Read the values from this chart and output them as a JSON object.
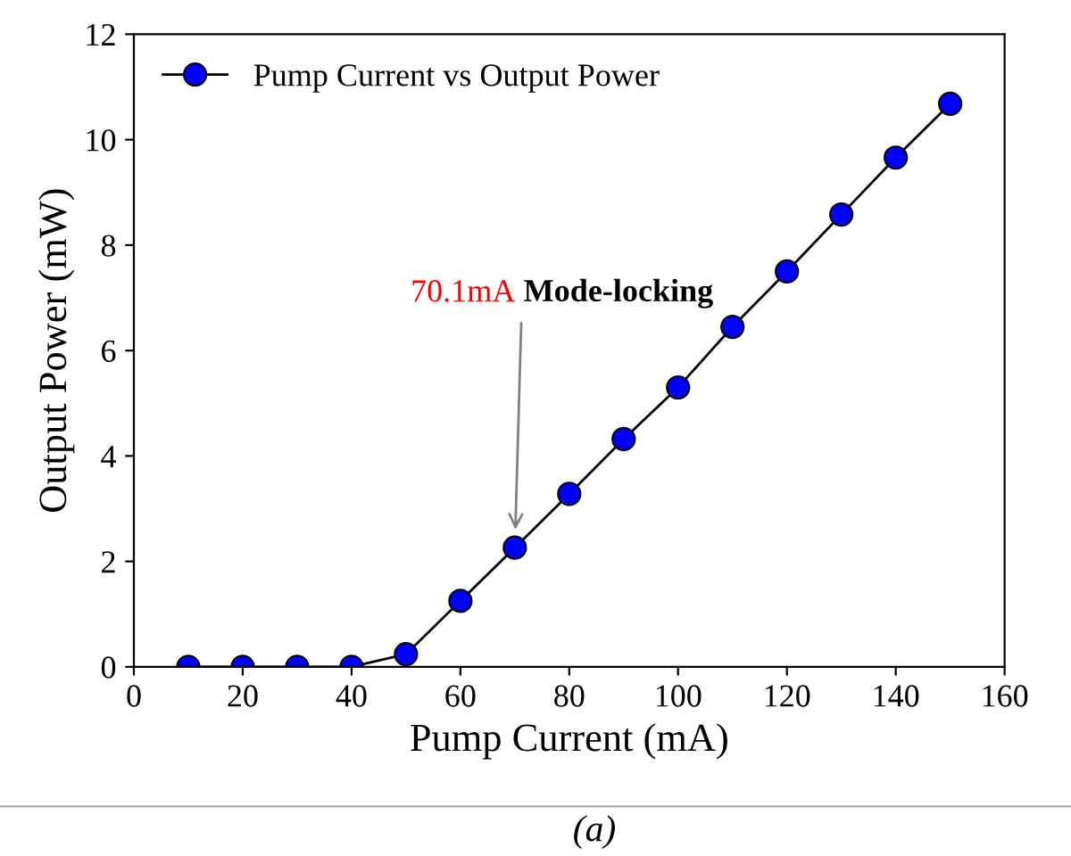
{
  "chart_data": {
    "type": "line",
    "xlabel": "Pump Current (mA)",
    "ylabel": "Output Power (mW)",
    "x": [
      10,
      20,
      30,
      40,
      50,
      60,
      70,
      80,
      90,
      100,
      110,
      120,
      130,
      140,
      150
    ],
    "series": [
      {
        "name": "Pump Current vs Output Power",
        "color": "#0000ff",
        "values": [
          0,
          0,
          0,
          0,
          0.24,
          1.25,
          2.26,
          3.28,
          4.32,
          5.3,
          6.45,
          7.5,
          8.58,
          9.66,
          10.68
        ]
      }
    ],
    "xlim": [
      0,
      160
    ],
    "xticks": [
      0,
      20,
      40,
      60,
      80,
      100,
      120,
      140,
      160
    ],
    "ylim": [
      0,
      12
    ],
    "yticks": [
      0,
      2,
      4,
      6,
      8,
      10,
      12
    ],
    "marker": "circle",
    "line_style": "solid",
    "legend": "top left",
    "grid": false,
    "annotations": [
      {
        "text": "70.1mA",
        "x": 70.1,
        "y": 2.6
      },
      "Mode-locking",
      "(a)"
    ]
  }
}
